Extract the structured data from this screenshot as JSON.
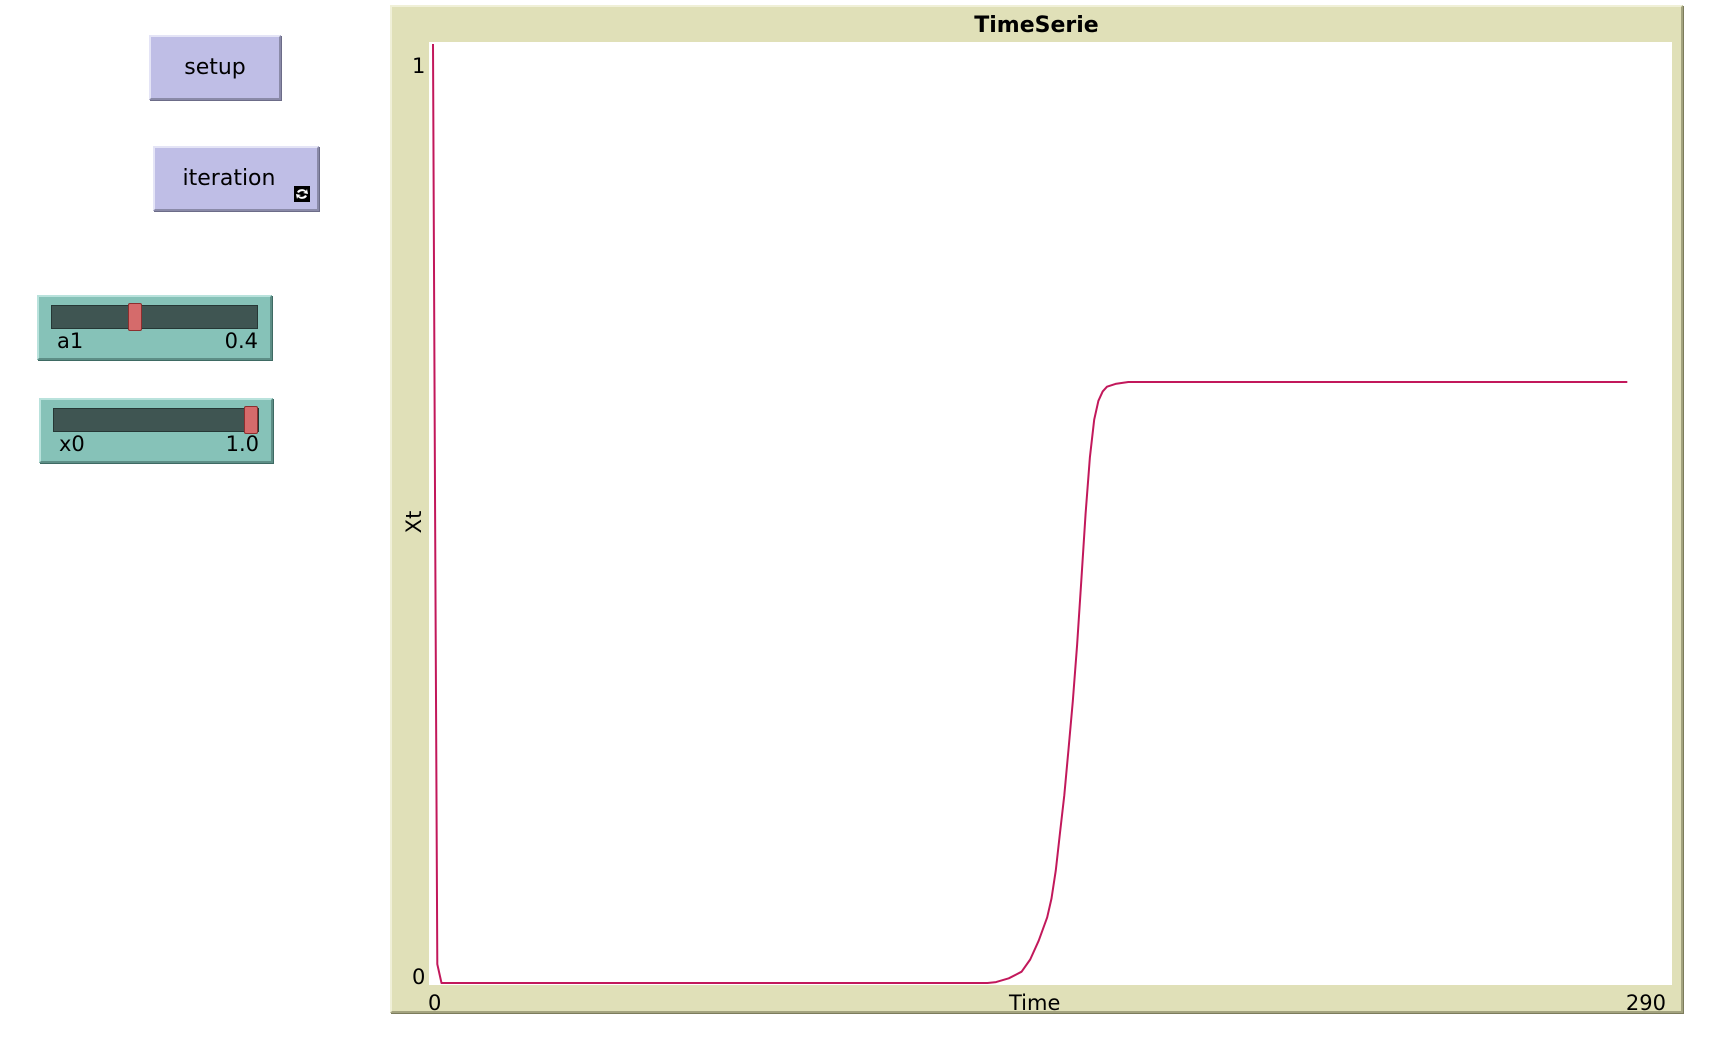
{
  "buttons": {
    "setup_label": "setup",
    "iteration_label": "iteration"
  },
  "sliders": [
    {
      "name": "a1",
      "value": "0.4",
      "fraction": 0.4
    },
    {
      "name": "x0",
      "value": "1.0",
      "fraction": 1.0
    }
  ],
  "plot": {
    "title": "TimeSerie",
    "y_label": "Xt",
    "x_label": "Time",
    "y_min_label": "0",
    "y_max_label": "1",
    "x_min_label": "0",
    "x_max_label": "290"
  },
  "chart_data": {
    "type": "line",
    "title": "TimeSerie",
    "xlabel": "Time",
    "ylabel": "Xt",
    "xlim": [
      0,
      290
    ],
    "ylim": [
      0,
      1
    ],
    "grid": false,
    "line_color": "#c2185b",
    "series": [
      {
        "x": [
          0,
          0.5,
          1,
          2,
          5,
          50,
          100,
          130,
          132,
          135,
          138,
          140,
          142,
          144,
          145,
          146,
          147,
          148,
          149,
          150,
          151,
          152,
          153,
          154,
          155,
          156,
          157,
          158,
          160,
          163,
          280
        ],
        "y": [
          1.0,
          0.5,
          0.02,
          0.0,
          0.0,
          0.0,
          0.0,
          0.0,
          0.001,
          0.005,
          0.012,
          0.025,
          0.045,
          0.07,
          0.09,
          0.12,
          0.16,
          0.2,
          0.25,
          0.3,
          0.36,
          0.43,
          0.5,
          0.56,
          0.6,
          0.62,
          0.63,
          0.635,
          0.638,
          0.64,
          0.64
        ]
      }
    ]
  },
  "colors": {
    "button_bg": "#bfbee6",
    "slider_bg": "#86c2b8",
    "slider_thumb": "#d56b6b",
    "plot_frame": "#e0e0b8",
    "plot_line": "#c2185b"
  }
}
